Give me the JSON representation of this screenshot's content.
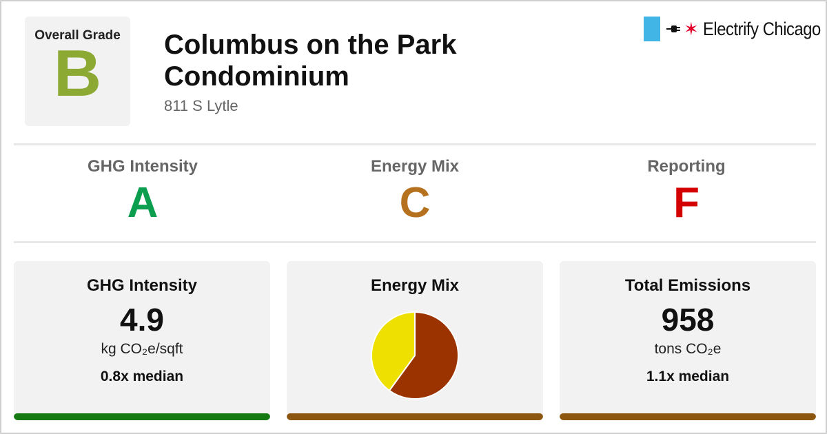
{
  "header": {
    "overall_grade_label": "Overall Grade",
    "overall_grade": "B",
    "building_name": "Columbus on the Park Condominium",
    "address": "811 S Lytle",
    "logo_text": "Electrify Chicago"
  },
  "subgrades": [
    {
      "label": "GHG Intensity",
      "grade": "A"
    },
    {
      "label": "Energy Mix",
      "grade": "C"
    },
    {
      "label": "Reporting",
      "grade": "F"
    }
  ],
  "cards": {
    "ghg": {
      "title": "GHG Intensity",
      "value": "4.9",
      "unit": "kg CO₂e/sqft",
      "median": "0.8x median"
    },
    "energy_mix": {
      "title": "Energy Mix"
    },
    "emissions": {
      "title": "Total Emissions",
      "value": "958",
      "unit": "tons CO₂e",
      "median": "1.1x median"
    }
  },
  "chart_data": {
    "type": "pie",
    "slices": [
      {
        "fraction": 0.6,
        "color": "#9B3300"
      },
      {
        "fraction": 0.4,
        "color": "#EEE000"
      }
    ]
  },
  "colors": {
    "grade_b": "#8CA934",
    "grade_a": "#0A9E4E",
    "grade_c": "#B5711E",
    "grade_f": "#D40000",
    "bar_green": "#157A12",
    "bar_brown": "#8C5510",
    "logo_blue": "#41B6E6",
    "logo_red": "#E4002B"
  }
}
